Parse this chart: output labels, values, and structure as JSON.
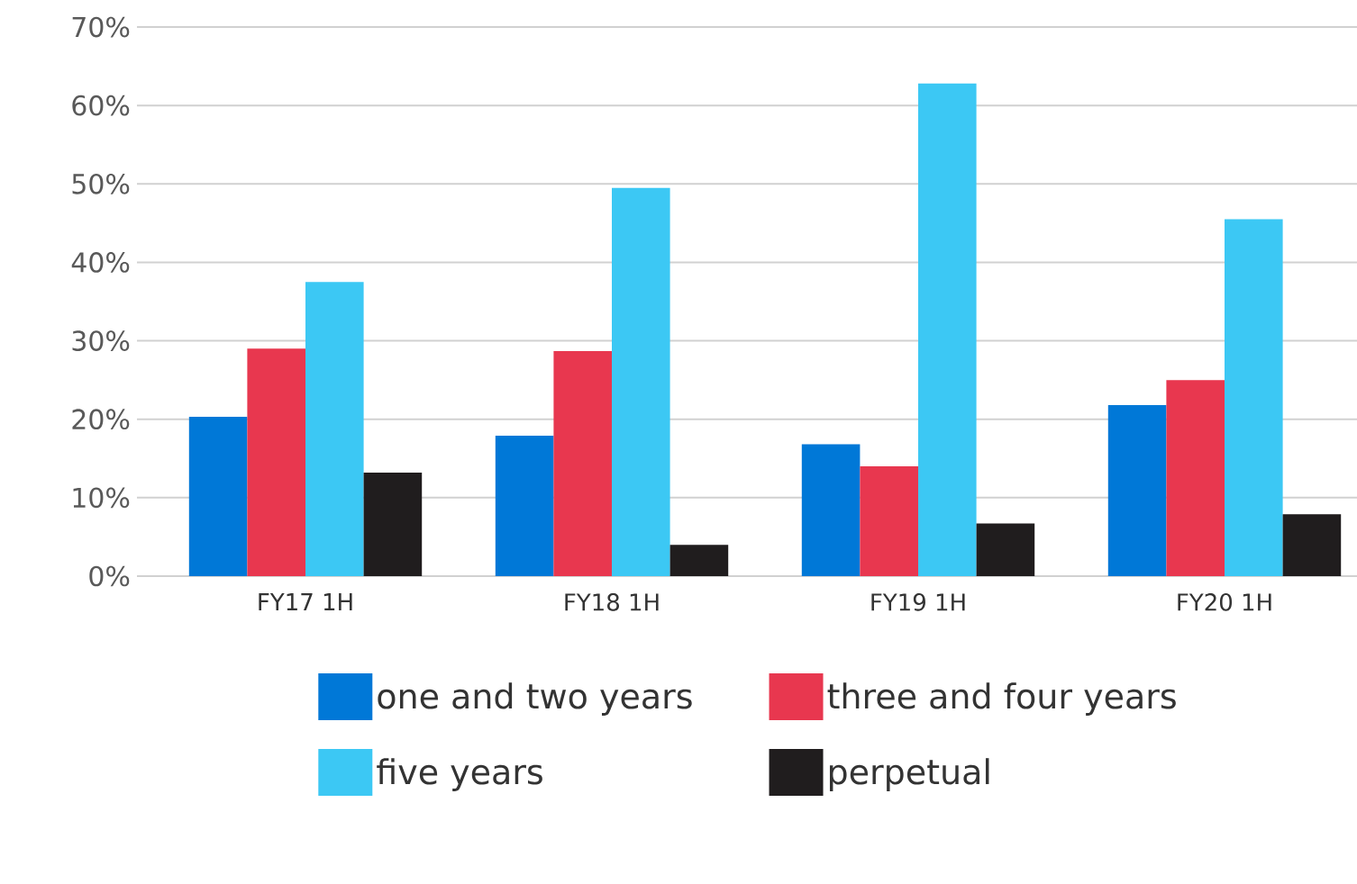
{
  "chart_data": {
    "type": "bar",
    "categories": [
      "FY17 1H",
      "FY18 1H",
      "FY19 1H",
      "FY20 1H"
    ],
    "series": [
      {
        "name": "one and two years",
        "color": "#0078d7",
        "values": [
          20.3,
          17.9,
          16.8,
          21.8
        ]
      },
      {
        "name": "three and four years",
        "color": "#e8374f",
        "values": [
          29.0,
          28.7,
          14.0,
          25.0
        ]
      },
      {
        "name": "five years",
        "color": "#3cc8f4",
        "values": [
          37.5,
          49.5,
          62.8,
          45.5
        ]
      },
      {
        "name": "perpetual",
        "color": "#201d1e",
        "values": [
          13.2,
          4.0,
          6.7,
          7.9
        ]
      }
    ],
    "ylim": [
      0,
      70
    ],
    "yticks": [
      {
        "value": 0,
        "label": "0%"
      },
      {
        "value": 10,
        "label": "10%"
      },
      {
        "value": 20,
        "label": "20%"
      },
      {
        "value": 30,
        "label": "30%"
      },
      {
        "value": 40,
        "label": "40%"
      },
      {
        "value": 50,
        "label": "50%"
      },
      {
        "value": 60,
        "label": "60%"
      },
      {
        "value": 70,
        "label": "70%"
      }
    ],
    "grid": "y",
    "legend": "bottom"
  }
}
